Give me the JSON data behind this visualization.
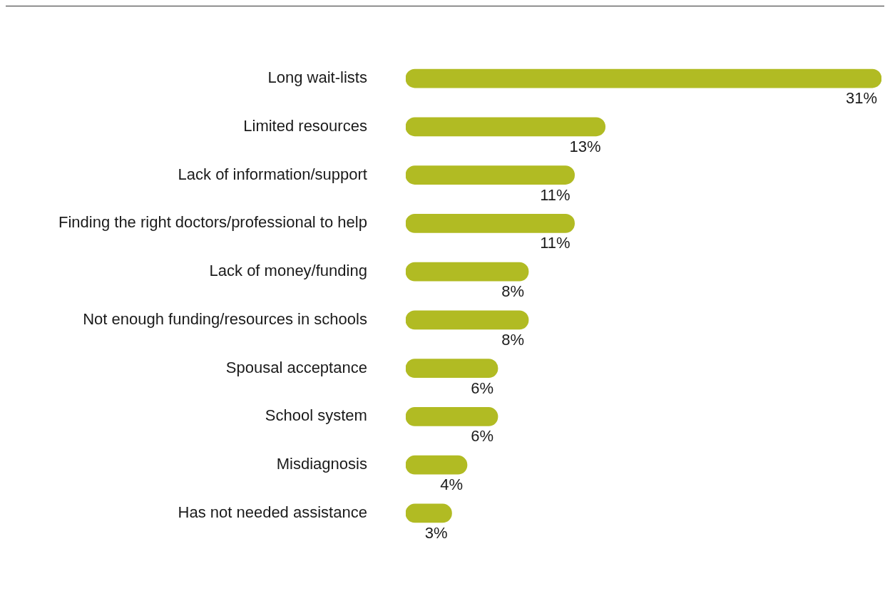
{
  "chart_data": {
    "type": "bar",
    "orientation": "horizontal",
    "color": "#b1bb23",
    "categories": [
      "Long wait-lists",
      "Limited resources",
      "Lack of information/support",
      "Finding the right doctors/professional to help",
      "Lack of money/funding",
      "Not enough funding/resources in schools",
      "Spousal acceptance",
      "School system",
      "Misdiagnosis",
      "Has not needed assistance"
    ],
    "values": [
      31,
      13,
      11,
      11,
      8,
      8,
      6,
      6,
      4,
      3
    ],
    "value_labels": [
      "31%",
      "13%",
      "11%",
      "11%",
      "8%",
      "8%",
      "6%",
      "6%",
      "4%",
      "3%"
    ],
    "legend": false
  }
}
